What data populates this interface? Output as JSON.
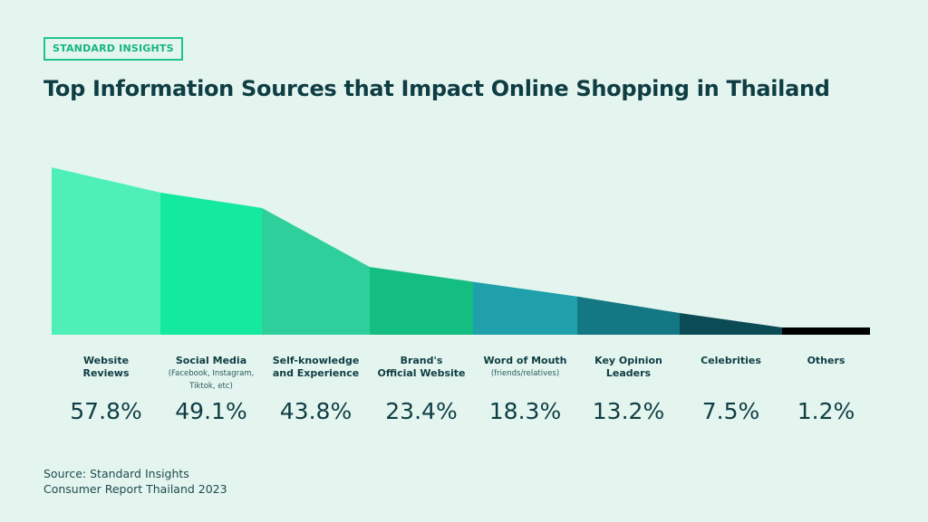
{
  "badge": "STANDARD INSIGHTS",
  "title": "Top Information Sources that Impact Online Shopping in Thailand",
  "source": [
    "Source: Standard Insights",
    "Consumer Report Thailand 2023"
  ],
  "chart_data": {
    "type": "area",
    "title": "Top Information Sources that Impact Online Shopping in Thailand",
    "categories": [
      {
        "label": "Website\nReviews",
        "sub": "",
        "value_label": "57.8%"
      },
      {
        "label": "Social Media",
        "sub": "(Facebook, Instagram,\nTiktok, etc)",
        "value_label": "49.1%"
      },
      {
        "label": "Self-knowledge\nand Experience",
        "sub": "",
        "value_label": "43.8%"
      },
      {
        "label": "Brand's\nOfficial Website",
        "sub": "",
        "value_label": "23.4%"
      },
      {
        "label": "Word of Mouth",
        "sub": "(friends/relatives)",
        "value_label": "18.3%"
      },
      {
        "label": "Key Opinion\nLeaders",
        "sub": "",
        "value_label": "13.2%"
      },
      {
        "label": "Celebrities",
        "sub": "",
        "value_label": "7.5%"
      },
      {
        "label": "Others",
        "sub": "",
        "value_label": "1.2%"
      }
    ],
    "values": [
      57.8,
      49.1,
      43.8,
      23.4,
      18.3,
      13.2,
      7.5,
      1.2
    ],
    "unit": "%",
    "colors": [
      "#4ef0b8",
      "#14ea9f",
      "#2fcf9c",
      "#14bd80",
      "#1fa0ab",
      "#137884",
      "#0b4b55",
      "#000000"
    ],
    "grid": false,
    "legend": "none"
  }
}
